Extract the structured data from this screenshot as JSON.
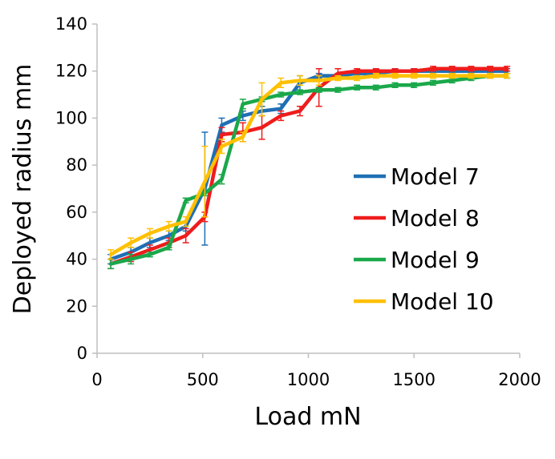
{
  "chart_data": {
    "type": "line",
    "title": "",
    "xlabel": "Load  mN",
    "ylabel": "Deployed radius  mm",
    "xlim": [
      0,
      2000
    ],
    "ylim": [
      0,
      140
    ],
    "xticks": [
      0,
      500,
      1000,
      1500,
      2000
    ],
    "yticks": [
      0,
      20,
      40,
      60,
      80,
      100,
      120,
      140
    ],
    "grid": false,
    "legend_position": "right",
    "series": [
      {
        "name": "Model 7",
        "color": "#1f6fb4",
        "x": [
          65,
          160,
          250,
          340,
          420,
          510,
          590,
          690,
          780,
          870,
          960,
          1050,
          1140,
          1230,
          1320,
          1410,
          1500,
          1590,
          1680,
          1770,
          1860,
          1940
        ],
        "y": [
          40,
          43,
          47,
          50,
          54,
          70,
          97,
          101,
          103,
          104,
          115,
          118,
          118,
          119,
          119,
          120,
          120,
          120,
          120,
          120,
          120,
          120
        ],
        "err": [
          2,
          2,
          2,
          2,
          2,
          24,
          3,
          2,
          2,
          2,
          3,
          1,
          1,
          1,
          1,
          1,
          1,
          1,
          1,
          1,
          1,
          1
        ]
      },
      {
        "name": "Model 8",
        "color": "#ee1c1c",
        "x": [
          65,
          160,
          250,
          340,
          420,
          510,
          590,
          690,
          780,
          870,
          960,
          1050,
          1140,
          1230,
          1320,
          1410,
          1500,
          1590,
          1680,
          1770,
          1860,
          1940
        ],
        "y": [
          38,
          41,
          44,
          47,
          50,
          58,
          93,
          94,
          96,
          101,
          103,
          113,
          119,
          120,
          120,
          120,
          120,
          121,
          121,
          121,
          121,
          121
        ],
        "err": [
          2,
          2,
          2,
          2,
          3,
          2,
          3,
          4,
          5,
          2,
          2,
          8,
          2,
          1,
          1,
          1,
          1,
          1,
          1,
          1,
          1,
          1
        ]
      },
      {
        "name": "Model 9",
        "color": "#1aa84a",
        "x": [
          65,
          160,
          250,
          340,
          420,
          510,
          590,
          690,
          780,
          870,
          960,
          1050,
          1140,
          1230,
          1320,
          1410,
          1500,
          1590,
          1680,
          1770,
          1860,
          1940
        ],
        "y": [
          38,
          40,
          42,
          45,
          65,
          68,
          74,
          106,
          108,
          110,
          111,
          112,
          112,
          113,
          113,
          114,
          114,
          115,
          116,
          117,
          118,
          118
        ],
        "err": [
          2,
          2,
          1,
          1,
          1,
          1,
          2,
          2,
          1,
          1,
          1,
          1,
          1,
          1,
          1,
          1,
          1,
          1,
          1,
          1,
          1,
          1
        ]
      },
      {
        "name": "Model 10",
        "color": "#ffc000",
        "x": [
          65,
          160,
          250,
          340,
          420,
          510,
          590,
          690,
          780,
          870,
          960,
          1050,
          1140,
          1230,
          1320,
          1410,
          1500,
          1590,
          1680,
          1770,
          1860,
          1940
        ],
        "y": [
          42,
          47,
          51,
          54,
          56,
          73,
          88,
          92,
          108,
          115,
          116,
          116,
          117,
          117,
          118,
          118,
          118,
          118,
          118,
          118,
          118,
          118
        ],
        "err": [
          2,
          2,
          2,
          2,
          2,
          15,
          3,
          2,
          7,
          2,
          2,
          2,
          1,
          1,
          1,
          1,
          1,
          1,
          1,
          1,
          1,
          1
        ]
      }
    ]
  }
}
